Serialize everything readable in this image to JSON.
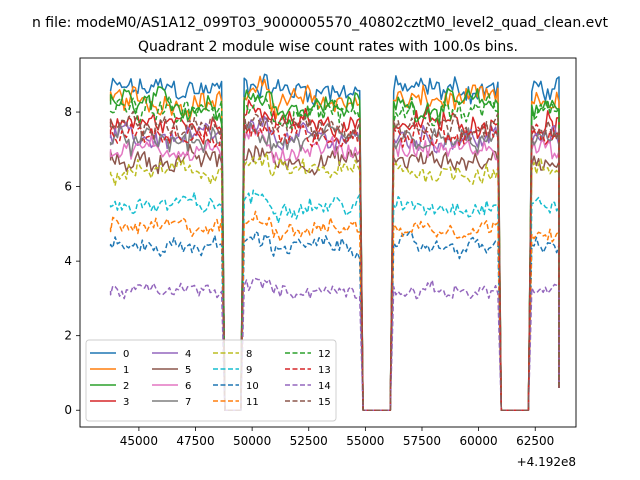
{
  "header": {
    "suptitle": "n file: modeM0/AS1A12_099T03_9000005570_40802cztM0_level2_quad_clean.evt",
    "title": "Quadrant 2 module wise count rates with 100.0s bins."
  },
  "chart_data": {
    "type": "line",
    "title": "Quadrant 2 module wise count rates with 100.0s bins.",
    "xlabel": "",
    "ylabel": "",
    "x_offset_label": "+4.192e8",
    "xlim": [
      42400,
      64300
    ],
    "ylim": [
      -0.45,
      9.45
    ],
    "xticks": [
      45000,
      47500,
      50000,
      52500,
      55000,
      57500,
      60000,
      62500
    ],
    "xtick_labels": [
      "45000",
      "47500",
      "50000",
      "52500",
      "55000",
      "57500",
      "60000",
      "62500"
    ],
    "yticks": [
      0,
      2,
      4,
      6,
      8
    ],
    "ytick_labels": [
      "0",
      "2",
      "4",
      "6",
      "8"
    ],
    "grid": false,
    "legend": {
      "placement": "lower-left",
      "columns": 4
    },
    "time_segments": [
      [
        43750,
        48650
      ],
      [
        49650,
        54750
      ],
      [
        56250,
        60850
      ],
      [
        62350,
        63550
      ]
    ],
    "gap_level": 0,
    "series": [
      {
        "name": "0",
        "color": "#1f77b4",
        "style": "solid",
        "level": 8.6
      },
      {
        "name": "1",
        "color": "#ff7f0e",
        "style": "solid",
        "level": 8.3
      },
      {
        "name": "2",
        "color": "#2ca02c",
        "style": "solid",
        "level": 8.2
      },
      {
        "name": "3",
        "color": "#d62728",
        "style": "solid",
        "level": 7.7
      },
      {
        "name": "4",
        "color": "#9467bd",
        "style": "solid",
        "level": 7.3
      },
      {
        "name": "5",
        "color": "#8c564b",
        "style": "solid",
        "level": 6.7
      },
      {
        "name": "6",
        "color": "#e377c2",
        "style": "solid",
        "level": 7.0
      },
      {
        "name": "7",
        "color": "#7f7f7f",
        "style": "solid",
        "level": 7.2
      },
      {
        "name": "8",
        "color": "#bcbd22",
        "style": "dashed",
        "level": 6.4
      },
      {
        "name": "9",
        "color": "#17becf",
        "style": "dashed",
        "level": 5.5
      },
      {
        "name": "10",
        "color": "#1f77b4",
        "style": "dashed",
        "level": 4.4
      },
      {
        "name": "11",
        "color": "#ff7f0e",
        "style": "dashed",
        "level": 4.9
      },
      {
        "name": "12",
        "color": "#2ca02c",
        "style": "dashed",
        "level": 8.0
      },
      {
        "name": "13",
        "color": "#d62728",
        "style": "dashed",
        "level": 7.4
      },
      {
        "name": "14",
        "color": "#9467bd",
        "style": "dashed",
        "level": 3.2
      },
      {
        "name": "15",
        "color": "#8c564b",
        "style": "dashed",
        "level": 7.6
      }
    ]
  }
}
